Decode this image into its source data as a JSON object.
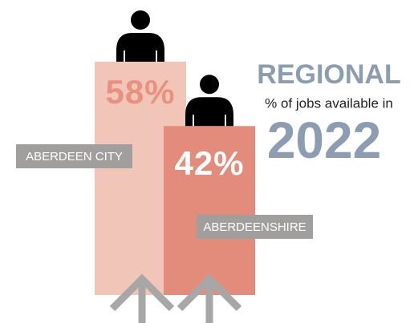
{
  "chart_data": {
    "type": "bar",
    "title": "REGIONAL",
    "subtitle": "% of jobs available in",
    "year": "2022",
    "categories": [
      "ABERDEEN CITY",
      "ABERDEENSHIRE"
    ],
    "values": [
      58,
      42
    ],
    "value_labels": [
      "58%",
      "42%"
    ],
    "colors": [
      "#f2c5b9",
      "#e48c7c"
    ],
    "value_label_colors": [
      "#e8917f",
      "#ffffff"
    ]
  }
}
